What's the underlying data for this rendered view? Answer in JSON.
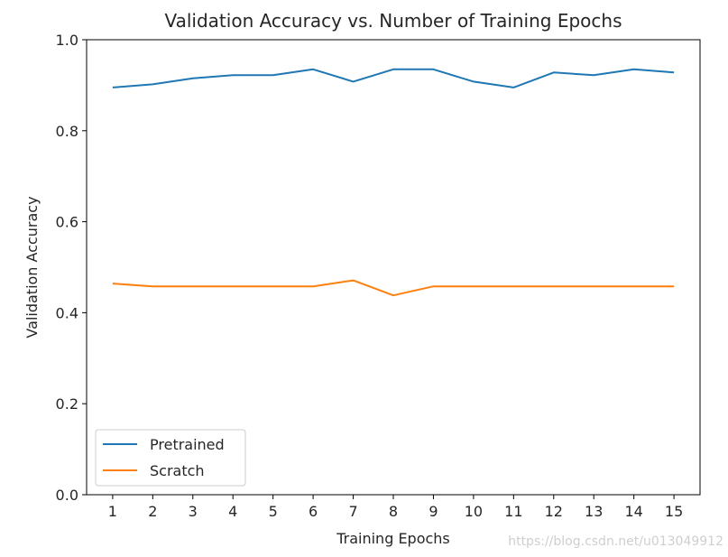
{
  "chart_data": {
    "type": "line",
    "title": "Validation Accuracy vs. Number of Training Epochs",
    "xlabel": "Training Epochs",
    "ylabel": "Validation Accuracy",
    "x": [
      1,
      2,
      3,
      4,
      5,
      6,
      7,
      8,
      9,
      10,
      11,
      12,
      13,
      14,
      15
    ],
    "xlim": [
      0.35,
      15.65
    ],
    "ylim": [
      0.0,
      1.0
    ],
    "yticks": [
      0.0,
      0.2,
      0.4,
      0.6,
      0.8,
      1.0
    ],
    "ytick_labels": [
      "0.0",
      "0.2",
      "0.4",
      "0.6",
      "0.8",
      "1.0"
    ],
    "xtick_labels": [
      "1",
      "2",
      "3",
      "4",
      "5",
      "6",
      "7",
      "8",
      "9",
      "10",
      "11",
      "12",
      "13",
      "14",
      "15"
    ],
    "grid": false,
    "legend_position": "lower-left",
    "series": [
      {
        "name": "Pretrained",
        "color": "#1f77b4",
        "values": [
          0.895,
          0.902,
          0.915,
          0.922,
          0.922,
          0.935,
          0.908,
          0.935,
          0.935,
          0.908,
          0.895,
          0.928,
          0.922,
          0.935,
          0.928
        ]
      },
      {
        "name": "Scratch",
        "color": "#ff7f0e",
        "values": [
          0.464,
          0.458,
          0.458,
          0.458,
          0.458,
          0.458,
          0.471,
          0.438,
          0.458,
          0.458,
          0.458,
          0.458,
          0.458,
          0.458,
          0.458
        ]
      }
    ]
  },
  "watermark": "https://blog.csdn.net/u013049912"
}
